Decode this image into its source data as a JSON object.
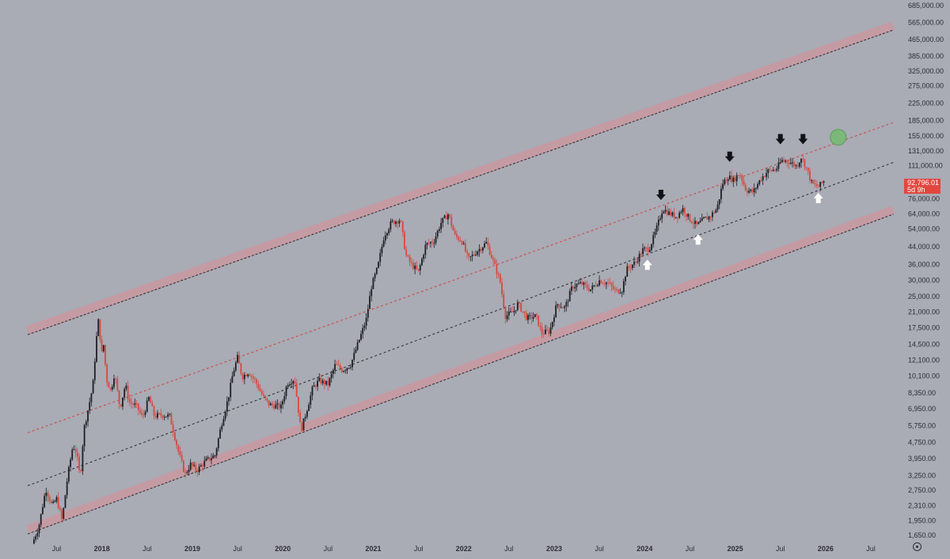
{
  "chart_data": {
    "type": "candlestick",
    "scale": "log",
    "title": "",
    "ylim": [
      1450,
      800000
    ],
    "xlim": [
      2017.25,
      2026.75
    ],
    "y_ticks": [
      "685,000.00",
      "565,000.00",
      "465,000.00",
      "385,000.00",
      "325,000.00",
      "275,000.00",
      "225,000.00",
      "185,000.00",
      "155,000.00",
      "131,000.00",
      "111,000.00",
      "76,000.00",
      "64,000.00",
      "54,000.00",
      "44,000.00",
      "36,000.00",
      "30,000.00",
      "25,000.00",
      "21,000.00",
      "17,500.00",
      "14,500.00",
      "12,100.00",
      "10,100.00",
      "8,350.00",
      "6,950.00",
      "5,750.00",
      "4,750.00",
      "3,950.00",
      "3,250.00",
      "2,750.00",
      "2,310.00",
      "1,950.00",
      "1,650.00"
    ],
    "x_ticks": [
      {
        "label": "Jul",
        "t": 2017.5,
        "bold": false
      },
      {
        "label": "2018",
        "t": 2018.0,
        "bold": true
      },
      {
        "label": "Jul",
        "t": 2018.5,
        "bold": false
      },
      {
        "label": "2019",
        "t": 2019.0,
        "bold": true
      },
      {
        "label": "Jul",
        "t": 2019.5,
        "bold": false
      },
      {
        "label": "2020",
        "t": 2020.0,
        "bold": true
      },
      {
        "label": "Jul",
        "t": 2020.5,
        "bold": false
      },
      {
        "label": "2021",
        "t": 2021.0,
        "bold": true
      },
      {
        "label": "Jul",
        "t": 2021.5,
        "bold": false
      },
      {
        "label": "2022",
        "t": 2022.0,
        "bold": true
      },
      {
        "label": "Jul",
        "t": 2022.5,
        "bold": false
      },
      {
        "label": "2023",
        "t": 2023.0,
        "bold": true
      },
      {
        "label": "Jul",
        "t": 2023.5,
        "bold": false
      },
      {
        "label": "2024",
        "t": 2024.0,
        "bold": true
      },
      {
        "label": "Jul",
        "t": 2024.5,
        "bold": false
      },
      {
        "label": "2025",
        "t": 2025.0,
        "bold": true
      },
      {
        "label": "Jul",
        "t": 2025.5,
        "bold": false
      },
      {
        "label": "2026",
        "t": 2026.0,
        "bold": true
      },
      {
        "label": "Jul",
        "t": 2026.5,
        "bold": false
      }
    ],
    "price_path": [
      [
        2017.23,
        1500
      ],
      [
        2017.3,
        1800
      ],
      [
        2017.38,
        2800
      ],
      [
        2017.45,
        2300
      ],
      [
        2017.5,
        2500
      ],
      [
        2017.56,
        1950
      ],
      [
        2017.62,
        3200
      ],
      [
        2017.68,
        4600
      ],
      [
        2017.72,
        4200
      ],
      [
        2017.76,
        3150
      ],
      [
        2017.8,
        5500
      ],
      [
        2017.85,
        7000
      ],
      [
        2017.9,
        9000
      ],
      [
        2017.94,
        15500
      ],
      [
        2017.96,
        19000
      ],
      [
        2018.0,
        13000
      ],
      [
        2018.02,
        14500
      ],
      [
        2018.05,
        9800
      ],
      [
        2018.1,
        8500
      ],
      [
        2018.14,
        10500
      ],
      [
        2018.2,
        7000
      ],
      [
        2018.26,
        9200
      ],
      [
        2018.3,
        7500
      ],
      [
        2018.38,
        7200
      ],
      [
        2018.45,
        6300
      ],
      [
        2018.52,
        7900
      ],
      [
        2018.58,
        6400
      ],
      [
        2018.66,
        6500
      ],
      [
        2018.75,
        6400
      ],
      [
        2018.85,
        4200
      ],
      [
        2018.92,
        3300
      ],
      [
        2018.98,
        3700
      ],
      [
        2019.05,
        3450
      ],
      [
        2019.15,
        3850
      ],
      [
        2019.25,
        4100
      ],
      [
        2019.32,
        5800
      ],
      [
        2019.4,
        8000
      ],
      [
        2019.45,
        10500
      ],
      [
        2019.5,
        12500
      ],
      [
        2019.55,
        10000
      ],
      [
        2019.62,
        10600
      ],
      [
        2019.7,
        9500
      ],
      [
        2019.78,
        8000
      ],
      [
        2019.85,
        7300
      ],
      [
        2019.92,
        7200
      ],
      [
        2019.98,
        7100
      ],
      [
        2020.05,
        9300
      ],
      [
        2020.13,
        9800
      ],
      [
        2020.2,
        5400
      ],
      [
        2020.25,
        6500
      ],
      [
        2020.33,
        8800
      ],
      [
        2020.4,
        9600
      ],
      [
        2020.5,
        9200
      ],
      [
        2020.58,
        11500
      ],
      [
        2020.66,
        10800
      ],
      [
        2020.75,
        11500
      ],
      [
        2020.85,
        15500
      ],
      [
        2020.92,
        19000
      ],
      [
        2020.98,
        28000
      ],
      [
        2021.05,
        35000
      ],
      [
        2021.12,
        50000
      ],
      [
        2021.2,
        58000
      ],
      [
        2021.3,
        60000
      ],
      [
        2021.36,
        40000
      ],
      [
        2021.42,
        36000
      ],
      [
        2021.5,
        33000
      ],
      [
        2021.58,
        45000
      ],
      [
        2021.67,
        47000
      ],
      [
        2021.75,
        58000
      ],
      [
        2021.83,
        64000
      ],
      [
        2021.9,
        50000
      ],
      [
        2021.98,
        47000
      ],
      [
        2022.05,
        38000
      ],
      [
        2022.15,
        42000
      ],
      [
        2022.25,
        46000
      ],
      [
        2022.32,
        38000
      ],
      [
        2022.4,
        30000
      ],
      [
        2022.46,
        20000
      ],
      [
        2022.55,
        21000
      ],
      [
        2022.6,
        23000
      ],
      [
        2022.7,
        19500
      ],
      [
        2022.8,
        20000
      ],
      [
        2022.86,
        16500
      ],
      [
        2022.95,
        16800
      ],
      [
        2023.03,
        23000
      ],
      [
        2023.12,
        22000
      ],
      [
        2023.2,
        28000
      ],
      [
        2023.3,
        29000
      ],
      [
        2023.4,
        27000
      ],
      [
        2023.5,
        30000
      ],
      [
        2023.6,
        29000
      ],
      [
        2023.68,
        26500
      ],
      [
        2023.75,
        27000
      ],
      [
        2023.8,
        34000
      ],
      [
        2023.9,
        37000
      ],
      [
        2023.98,
        42500
      ],
      [
        2024.05,
        43000
      ],
      [
        2024.12,
        52000
      ],
      [
        2024.2,
        68000
      ],
      [
        2024.28,
        64000
      ],
      [
        2024.35,
        62000
      ],
      [
        2024.42,
        68000
      ],
      [
        2024.5,
        60000
      ],
      [
        2024.58,
        56000
      ],
      [
        2024.65,
        60000
      ],
      [
        2024.72,
        62000
      ],
      [
        2024.8,
        68000
      ],
      [
        2024.86,
        90000
      ],
      [
        2024.92,
        98000
      ],
      [
        2024.98,
        94000
      ],
      [
        2025.05,
        102000
      ],
      [
        2025.12,
        84000
      ],
      [
        2025.2,
        82000
      ],
      [
        2025.28,
        95000
      ],
      [
        2025.36,
        104000
      ],
      [
        2025.45,
        106000
      ],
      [
        2025.52,
        118000
      ],
      [
        2025.6,
        116000
      ],
      [
        2025.68,
        110000
      ],
      [
        2025.73,
        122000
      ],
      [
        2025.78,
        110000
      ],
      [
        2025.85,
        90000
      ],
      [
        2025.92,
        87000
      ],
      [
        2025.98,
        92796
      ]
    ],
    "channel_lines": [
      {
        "name": "upper-band",
        "t0": 2017.18,
        "v0": 17000,
        "t1": 2026.75,
        "v1": 545000,
        "band": true
      },
      {
        "name": "mid-red-line",
        "t0": 2017.18,
        "v0": 5300,
        "t1": 2026.75,
        "v1": 181000,
        "band": false,
        "color": "#d0453d"
      },
      {
        "name": "mid-black-line",
        "t0": 2017.18,
        "v0": 2900,
        "t1": 2026.75,
        "v1": 115000,
        "band": false,
        "color": "#2a2b30"
      },
      {
        "name": "lower-band",
        "t0": 2017.18,
        "v0": 1760,
        "t1": 2026.75,
        "v1": 67000,
        "band": true
      }
    ],
    "annotations": [
      {
        "kind": "down-arrow",
        "t": 2024.18,
        "v": 79000
      },
      {
        "kind": "down-arrow",
        "t": 2024.94,
        "v": 122000
      },
      {
        "kind": "down-arrow",
        "t": 2025.5,
        "v": 149000
      },
      {
        "kind": "down-arrow",
        "t": 2025.75,
        "v": 149000
      },
      {
        "kind": "up-arrow",
        "t": 2024.03,
        "v": 36000
      },
      {
        "kind": "up-arrow",
        "t": 2024.59,
        "v": 48000
      },
      {
        "kind": "up-arrow",
        "t": 2025.92,
        "v": 77000
      },
      {
        "kind": "target-circle",
        "t": 2026.14,
        "v": 153000
      }
    ]
  },
  "colors": {
    "background": "#a9abb5",
    "up_candle": "#1e1f24",
    "down_candle": "#d9473f",
    "band": "#c49ba3",
    "price_tag": "#e2473f",
    "target": "#7cb87a",
    "axis_text": "#2c2e33"
  },
  "last_price": {
    "value": "92,796.01",
    "countdown": "5d 9h"
  },
  "icons": {
    "settings": "settings-icon"
  }
}
